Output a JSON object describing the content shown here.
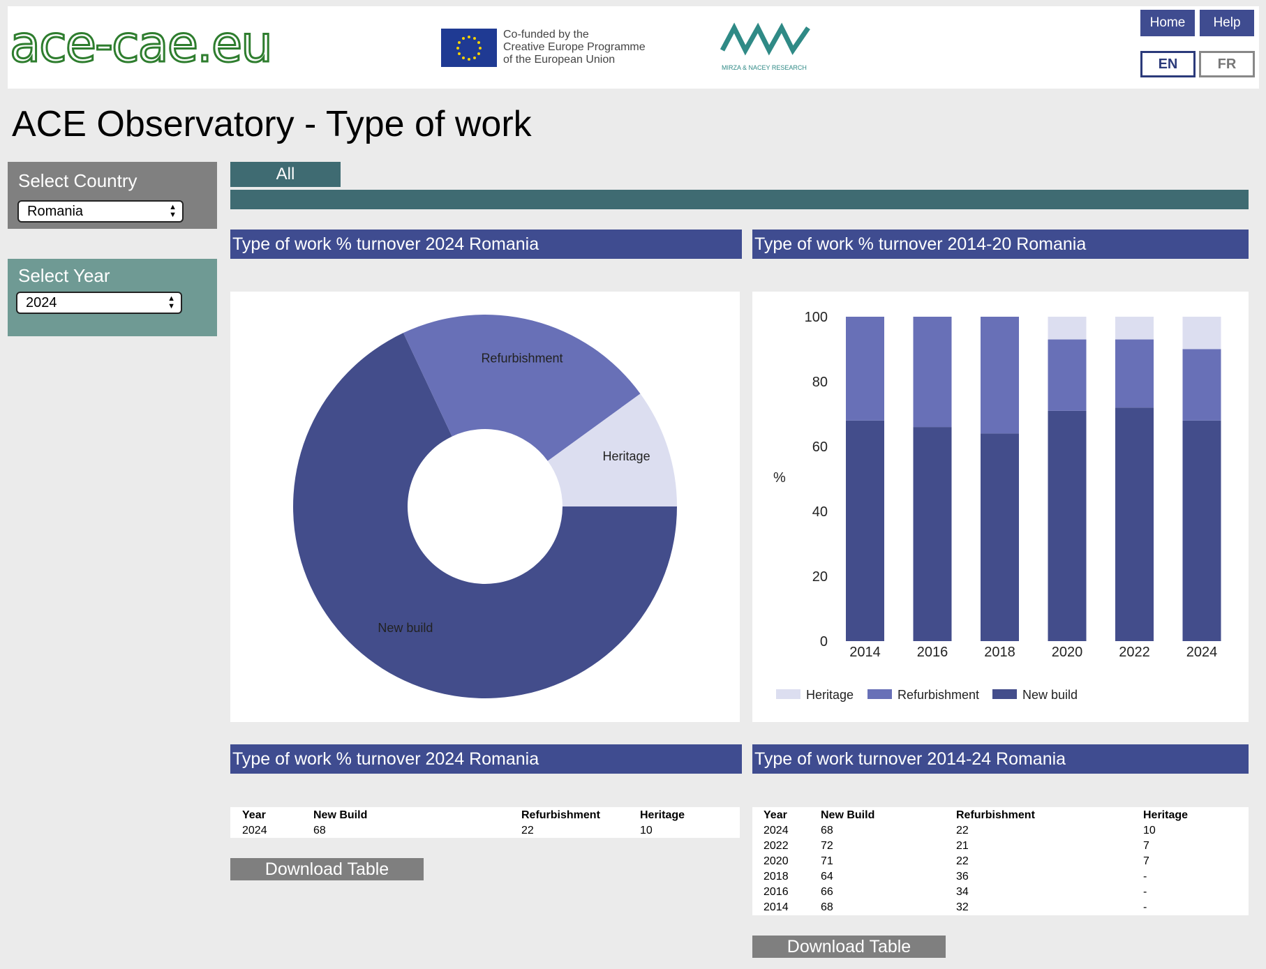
{
  "header": {
    "logo_text": "ace-cae.eu",
    "eu_text": [
      "Co-funded by the",
      "Creative Europe Programme",
      "of the European Union"
    ],
    "mnr_logo_text": "MIRZA & NACEY RESEARCH",
    "nav": {
      "home": "Home",
      "help": "Help"
    },
    "lang": {
      "en": "EN",
      "fr": "FR"
    }
  },
  "page_title": "ACE Observatory - Type of work",
  "sidebar": {
    "country": {
      "title": "Select Country",
      "value": "Romania"
    },
    "year": {
      "title": "Select Year",
      "value": "2024"
    }
  },
  "tabs": {
    "all": "All"
  },
  "sections": {
    "pie_title": "Type of work % turnover 2024 Romania",
    "bar_title": "Type of work % turnover 2014-20 Romania",
    "table1_title": "Type of work % turnover 2024 Romania",
    "table2_title": "Type of work  turnover 2014-24 Romania"
  },
  "colors": {
    "new_build": "#434d8b",
    "refurbishment": "#6870b7",
    "heritage": "#dcdef0",
    "header_blue": "#3f4c90",
    "teal": "#3f6b72"
  },
  "chart_data": [
    {
      "type": "pie",
      "labels": [
        "New build",
        "Refurbishment",
        "Heritage"
      ],
      "values": [
        68,
        22,
        10
      ]
    },
    {
      "type": "bar",
      "stacked": true,
      "categories": [
        "2014",
        "2016",
        "2018",
        "2020",
        "2022",
        "2024"
      ],
      "series": [
        {
          "name": "New build",
          "values": [
            68,
            66,
            64,
            71,
            72,
            68
          ]
        },
        {
          "name": "Refurbishment",
          "values": [
            32,
            34,
            36,
            22,
            21,
            22
          ]
        },
        {
          "name": "Heritage",
          "values": [
            0,
            0,
            0,
            7,
            7,
            10
          ]
        }
      ],
      "ylabel": "%",
      "ylim": [
        0,
        100
      ],
      "yticks": [
        "0",
        "20",
        "40",
        "60",
        "80",
        "100"
      ],
      "legend": [
        "Heritage",
        "Refurbishment",
        "New build"
      ],
      "legend_position": "bottom"
    }
  ],
  "table1": {
    "headers": [
      "Year",
      "New Build",
      "Refurbishment",
      "Heritage"
    ],
    "rows": [
      [
        "2024",
        "68",
        "22",
        "10"
      ]
    ]
  },
  "table2": {
    "headers": [
      "Year",
      "New Build",
      "Refurbishment",
      "Heritage"
    ],
    "rows": [
      [
        "2024",
        "68",
        "22",
        "10"
      ],
      [
        "2022",
        "72",
        "21",
        "7"
      ],
      [
        "2020",
        "71",
        "22",
        "7"
      ],
      [
        "2018",
        "64",
        "36",
        "-"
      ],
      [
        "2016",
        "66",
        "34",
        "-"
      ],
      [
        "2014",
        "68",
        "32",
        "-"
      ]
    ]
  },
  "download_label": "Download Table"
}
